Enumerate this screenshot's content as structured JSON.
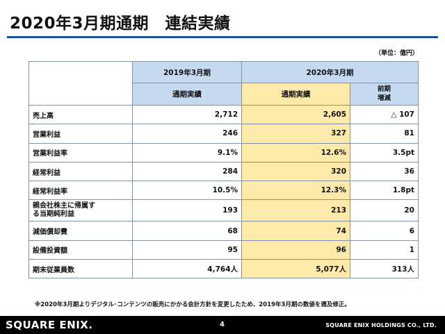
{
  "title": "2020年3月期通期　連結実績",
  "unit_note": "（単位：億円）",
  "table": {
    "header_group": [
      "2019年3月期",
      "2020年3月期"
    ],
    "header_sub": [
      "通期実績",
      "通期実績",
      "前期増減"
    ],
    "rows": [
      {
        "label": "売上高",
        "v2019": "2,712",
        "v2020": "2,605",
        "diff": "△ 107"
      },
      {
        "label": "営業利益",
        "v2019": "246",
        "v2020": "327",
        "diff": "81"
      },
      {
        "label": "営業利益率",
        "v2019": "9.1%",
        "v2020": "12.6%",
        "diff": "3.5pt"
      },
      {
        "label": "経常利益",
        "v2019": "284",
        "v2020": "320",
        "diff": "36"
      },
      {
        "label": "経常利益率",
        "v2019": "10.5%",
        "v2020": "12.3%",
        "diff": "1.8pt"
      },
      {
        "label": "親会社株主に帰属する当期純利益",
        "v2019": "193",
        "v2020": "213",
        "diff": "20"
      },
      {
        "label": "減価償却費",
        "v2019": "68",
        "v2020": "74",
        "diff": "6"
      },
      {
        "label": "設備投資額",
        "v2019": "95",
        "v2020": "96",
        "diff": "1"
      },
      {
        "label": "期末従業員数",
        "v2019": "4,764人",
        "v2020": "5,077人",
        "diff": "313人"
      }
    ]
  },
  "footnote": "※2020年3月期よりデジタル･コンテンツの販売にかかる会計方針を変更したため、2019年3月期の数値を遡及修正。",
  "footer": {
    "logo": "SQUARE ENIX.",
    "page_number": "4",
    "company": "SQUARE ENIX HOLDINGS CO., LTD."
  },
  "colors": {
    "header_blue": "#c5d9f1",
    "highlight_yellow": "#fde9a9",
    "title_rule": "#1f4e9a",
    "footer_bg": "#000000"
  }
}
